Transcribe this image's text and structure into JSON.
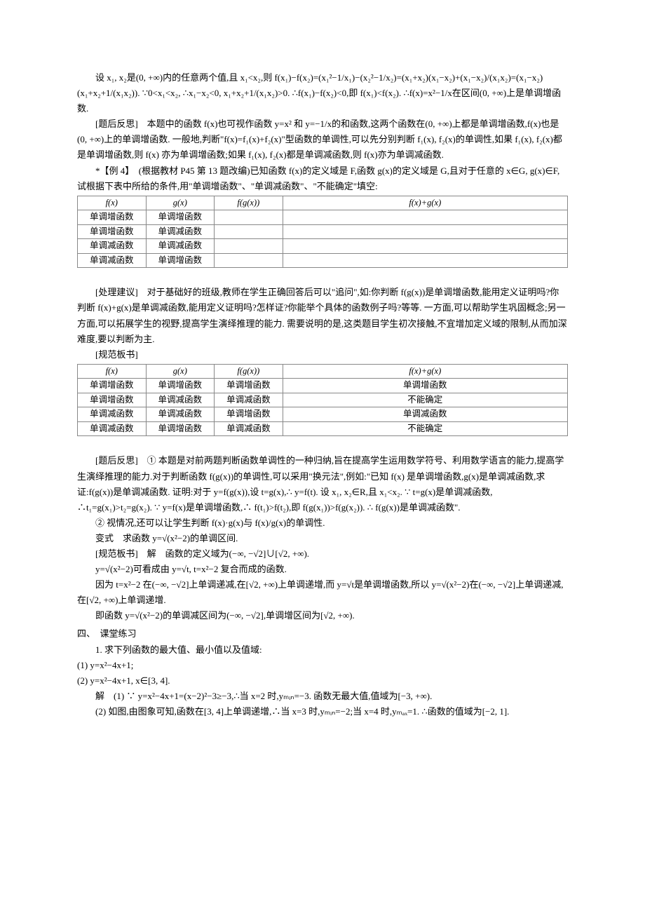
{
  "para1": "设 x₁, x₂是(0, +∞)内的任意两个值,且 x₁<x₂,则 f(x₁)−f(x₂)=(x₁²−1/x₁)−(x₂²−1/x₂)=(x₁+x₂)(x₁−x₂)+(x₁−x₂)/(x₁x₂)=(x₁−x₂)(x₁+x₂+1/(x₁x₂)). ∵0<x₁<x₂, ∴x₁−x₂<0, x₁+x₂+1/(x₁x₂)>0. ∴f(x₁)−f(x₂)<0,即 f(x₁)<f(x₂). ∴f(x)=x²−1/x在区间(0, +∞)上是单调增函数.",
  "para2": "[题后反思]　本题中的函数 f(x)也可视作函数 y=x² 和 y=−1/x的和函数,这两个函数在(0, +∞)上都是单调增函数,f(x)也是(0, +∞)上的单调增函数. 一般地,判断\"f(x)=f₁(x)+f₂(x)\"型函数的单调性,可以先分别判断 f₁(x), f₂(x)的单调性,如果 f₁(x), f₂(x)都是单调增函数,则 f(x) 亦为单调增函数;如果 f₁(x), f₂(x)都是单调减函数,则 f(x)亦为单调减函数.",
  "para3": "*【例 4】　(根据教材 P45 第 13 题改编)已知函数 f(x)的定义域是 F,函数 g(x)的定义域是 G,且对于任意的 x∈G, g(x)∈F,试根据下表中所给的条件,用\"单调增函数\"、\"单调减函数\"、\"不能确定\"填空:",
  "table1": {
    "header": [
      "f(x)",
      "g(x)",
      "f(g(x))",
      "f(x)+g(x)"
    ],
    "rows": [
      [
        "单调增函数",
        "单调增函数",
        "",
        ""
      ],
      [
        "单调增函数",
        "单调减函数",
        "",
        ""
      ],
      [
        "单调减函数",
        "单调减函数",
        "",
        ""
      ],
      [
        "单调减函数",
        "单调增函数",
        "",
        ""
      ]
    ]
  },
  "para4": "[处理建议]　对于基础好的班级,教师在学生正确回答后可以\"追问\",如:你判断 f(g(x))是单调增函数,能用定义证明吗?你判断 f(x)+g(x)是单调减函数,能用定义证明吗?怎样证?你能举个具体的函数例子吗?等等. 一方面,可以帮助学生巩固概念;另一方面,可以拓展学生的视野,提高学生演绎推理的能力. 需要说明的是,这类题目学生初次接触,不宜增加定义域的限制,从而加深难度,要以判断为主.",
  "para5": "[规范板书]",
  "table2": {
    "header": [
      "f(x)",
      "g(x)",
      "f(g(x))",
      "f(x)+g(x)"
    ],
    "rows": [
      [
        "单调增函数",
        "单调增函数",
        "单调增函数",
        "单调增函数"
      ],
      [
        "单调增函数",
        "单调减函数",
        "单调减函数",
        "不能确定"
      ],
      [
        "单调减函数",
        "单调减函数",
        "单调增函数",
        "单调减函数"
      ],
      [
        "单调减函数",
        "单调增函数",
        "单调减函数",
        "不能确定"
      ]
    ]
  },
  "para6": "[题后反思]　① 本题是对前两题判断函数单调性的一种归纳,旨在提高学生运用数学符号、利用数学语言的能力,提高学生演绎推理的能力.对于判断函数 f(g(x))的单调性,可以采用\"换元法\",例如:\"已知 f(x) 是单调增函数,g(x)是单调减函数,求证:f(g(x))是单调减函数. 证明:对于 y=f(g(x)),设 t=g(x),∴ y=f(t). 设 x₁, x₂∈R,且 x₁<x₂. ∵ t=g(x)是单调减函数, ∴t₁=g(x₁)>t₂=g(x₂). ∵ y=f(x)是单调增函数,∴ f(t₁)>f(t₂),即 f(g(x₁))>f(g(x₂)). ∴ f(g(x))是单调减函数\".",
  "para7": "② 视情况,还可以让学生判断 f(x)·g(x)与 f(x)/g(x)的单调性.",
  "para8": "变式　求函数 y=√(x²−2)的单调区间.",
  "para9": "[规范板书]　解　函数的定义域为(−∞, −√2]∪[√2, +∞).",
  "para10": "y=√(x²−2)可看成由 y=√t, t=x²−2 复合而成的函数.",
  "para11": "因为 t=x²−2 在(−∞, −√2]上单调递减,在[√2, +∞)上单调递增,而 y=√t是单调增函数,所以 y=√(x²−2)在(−∞, −√2]上单调递减,在[√2, +∞)上单调递增.",
  "para12": "即函数 y=√(x²−2)的单调减区间为(−∞, −√2],单调增区间为[√2, +∞).",
  "heading1": "四、　课堂练习",
  "ex1": "1. 求下列函数的最大值、最小值以及值域:",
  "ex1_1": "(1) y=x²−4x+1;",
  "ex1_2": "(2) y=x²−4x+1, x∈[3, 4].",
  "sol1": "解　(1) ∵ y=x²−4x+1=(x−2)²−3≥−3,∴当 x=2 时,yₘᵢₙ=−3. 函数无最大值,值域为[−3, +∞).",
  "sol2": "(2) 如图,由图象可知,函数在[3, 4]上单调递增,∴当 x=3 时,yₘᵢₙ=−2;当 x=4 时,yₘₐₓ=1. ∴函数的值域为[−2, 1]."
}
